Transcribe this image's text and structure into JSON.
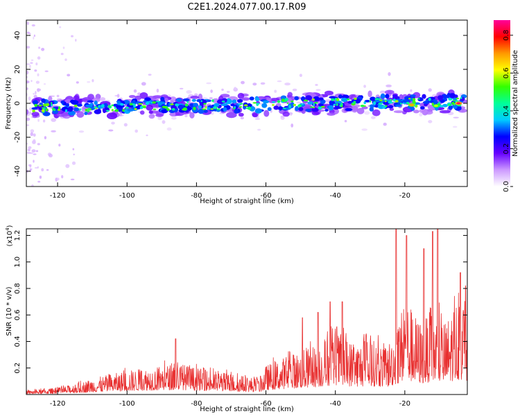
{
  "title": "C2E1.2024.077.00.17.R09",
  "chart_data": [
    {
      "type": "heatmap",
      "xlabel": "Height of straight line (km)",
      "ylabel": "Frequency (Hz)",
      "xlim": [
        -129,
        -2
      ],
      "ylim": [
        -49,
        49
      ],
      "x_ticks": [
        -120,
        -100,
        -80,
        -60,
        -40,
        -20
      ],
      "y_ticks": [
        -40,
        -20,
        0,
        20,
        40
      ],
      "grid": false,
      "colorbar": {
        "label": "Normalized spectral amplitude",
        "range": [
          0,
          0.88
        ],
        "ticks": [
          0.0,
          0.2,
          0.4,
          0.6,
          0.8
        ],
        "colors": [
          "#ffffff",
          "#cc99ff",
          "#6600ff",
          "#0000ff",
          "#00ccff",
          "#00ff99",
          "#33ff00",
          "#ffff00",
          "#ff9900",
          "#ff0000",
          "#ff0099"
        ]
      },
      "band": {
        "center_start": -2.5,
        "center_end": 1.0,
        "halfwidth": 4.5,
        "scatter_streak": {
          "x": [
            -129,
            -114
          ],
          "y": [
            -49,
            49
          ]
        },
        "hot_spots": [
          {
            "x": -4.5,
            "y": 0.0,
            "value": 0.85
          },
          {
            "x": -18.0,
            "y": -1.0,
            "value": 0.7
          },
          {
            "x": -11.0,
            "y": -1.5,
            "value": 0.6
          }
        ]
      }
    },
    {
      "type": "line",
      "xlabel": "Height of straight line (km)",
      "ylabel": "SNR (10 * v/v)",
      "y_scale_note": "(x10",
      "y_scale_exp": "4",
      "y_scale_close": ")",
      "xlim": [
        -129,
        -2
      ],
      "ylim": [
        0,
        1.25
      ],
      "x_ticks": [
        -120,
        -100,
        -80,
        -60,
        -40,
        -20
      ],
      "y_ticks": [
        0.2,
        0.4,
        0.6,
        0.8,
        1.0,
        1.2
      ],
      "grid": false,
      "series": [
        {
          "color": "#e83030",
          "envelope_x": [
            -129,
            -120,
            -115,
            -110,
            -100,
            -90,
            -85,
            -80,
            -70,
            -62,
            -60,
            -55,
            -50,
            -45,
            -40,
            -35,
            -30,
            -25,
            -22,
            -20,
            -17,
            -15,
            -12,
            -10,
            -8,
            -6,
            -4,
            -2
          ],
          "envelope_y": [
            0.03,
            0.05,
            0.08,
            0.12,
            0.18,
            0.22,
            0.24,
            0.2,
            0.16,
            0.12,
            0.22,
            0.28,
            0.33,
            0.38,
            0.48,
            0.4,
            0.42,
            0.38,
            0.55,
            0.75,
            0.6,
            0.55,
            0.65,
            0.6,
            0.55,
            0.7,
            0.75,
            0.7
          ],
          "spikes": [
            {
              "x": -86.0,
              "y": 0.42
            },
            {
              "x": -49.5,
              "y": 0.58
            },
            {
              "x": -45.0,
              "y": 0.62
            },
            {
              "x": -41.5,
              "y": 0.7
            },
            {
              "x": -38.0,
              "y": 0.7
            },
            {
              "x": -22.5,
              "y": 1.25
            },
            {
              "x": -19.5,
              "y": 1.2
            },
            {
              "x": -14.5,
              "y": 1.1
            },
            {
              "x": -12.0,
              "y": 1.23
            },
            {
              "x": -10.5,
              "y": 1.25
            },
            {
              "x": -4.0,
              "y": 0.92
            },
            {
              "x": -2.5,
              "y": 0.82
            }
          ]
        }
      ]
    }
  ]
}
